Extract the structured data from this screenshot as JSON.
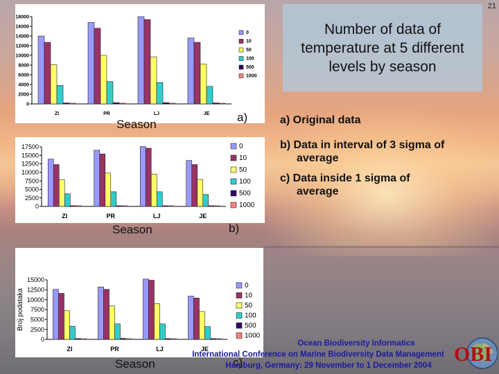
{
  "slide": {
    "page_number": "21",
    "title": "Number of data of temperature at 5 different levels by season",
    "notes": [
      {
        "lead": "a) Original data",
        "cont": ""
      },
      {
        "lead": "b) Data in interval of 3 sigma of",
        "cont": "average"
      },
      {
        "lead": "c) Data inside 1 sigma of",
        "cont": "average"
      }
    ],
    "footer": {
      "line1": "Ocean Biodiversity Informatics",
      "line2": "International Conference on Marine Biodiversity Data Management",
      "line3": "Hamburg, Germany: 29 November to 1 December 2004"
    },
    "logo_text": "OBI",
    "colors": {
      "0": "#9999ff",
      "10": "#993366",
      "50": "#ffff66",
      "100": "#33cccc",
      "500": "#330066",
      "1000": "#ff8080"
    }
  },
  "chart_data": [
    {
      "type": "bar",
      "panel_label": "a)",
      "xlabel": "Season",
      "ylabel": "",
      "categories": [
        "ZI",
        "PR",
        "LJ",
        "JE"
      ],
      "ylim": [
        0,
        18000
      ],
      "yticks": [
        "0",
        "2000",
        "4000",
        "6000",
        "8000",
        "10000",
        "12000",
        "14000",
        "16000",
        "18000"
      ],
      "series": [
        {
          "name": "0",
          "values": [
            14000,
            16800,
            18000,
            13600
          ]
        },
        {
          "name": "10",
          "values": [
            12700,
            15600,
            17400,
            12700
          ]
        },
        {
          "name": "50",
          "values": [
            8100,
            10000,
            9700,
            8200
          ]
        },
        {
          "name": "100",
          "values": [
            3800,
            4600,
            4400,
            3600
          ]
        },
        {
          "name": "500",
          "values": [
            200,
            250,
            250,
            200
          ]
        },
        {
          "name": "1000",
          "values": [
            50,
            60,
            60,
            50
          ]
        }
      ]
    },
    {
      "type": "bar",
      "panel_label": "b)",
      "xlabel": "Season",
      "ylabel": "",
      "categories": [
        "ZI",
        "PR",
        "LJ",
        "JE"
      ],
      "ylim": [
        0,
        17500
      ],
      "yticks": [
        "0",
        "2500",
        "5000",
        "7500",
        "10000",
        "12500",
        "15000",
        "17500"
      ],
      "series": [
        {
          "name": "0",
          "values": [
            13900,
            16500,
            17600,
            13500
          ]
        },
        {
          "name": "10",
          "values": [
            12300,
            15400,
            17100,
            12300
          ]
        },
        {
          "name": "50",
          "values": [
            7800,
            9800,
            9500,
            7900
          ]
        },
        {
          "name": "100",
          "values": [
            3700,
            4300,
            4300,
            3500
          ]
        },
        {
          "name": "500",
          "values": [
            200,
            200,
            200,
            200
          ]
        },
        {
          "name": "1000",
          "values": [
            50,
            50,
            50,
            50
          ]
        }
      ]
    },
    {
      "type": "bar",
      "panel_label": "c)",
      "xlabel": "Season",
      "ylabel": "Broj podataka",
      "categories": [
        "ZI",
        "PR",
        "LJ",
        "JE"
      ],
      "ylim": [
        0,
        15000
      ],
      "yticks": [
        "0",
        "2500",
        "5000",
        "7500",
        "10000",
        "12500",
        "15000"
      ],
      "series": [
        {
          "name": "0",
          "values": [
            12600,
            13200,
            15200,
            10900
          ]
        },
        {
          "name": "10",
          "values": [
            11600,
            12600,
            14900,
            10400
          ]
        },
        {
          "name": "50",
          "values": [
            7200,
            8400,
            9000,
            7000
          ]
        },
        {
          "name": "100",
          "values": [
            3300,
            3900,
            3900,
            3200
          ]
        },
        {
          "name": "500",
          "values": [
            200,
            250,
            200,
            200
          ]
        },
        {
          "name": "1000",
          "values": [
            50,
            50,
            50,
            50
          ]
        }
      ]
    }
  ]
}
